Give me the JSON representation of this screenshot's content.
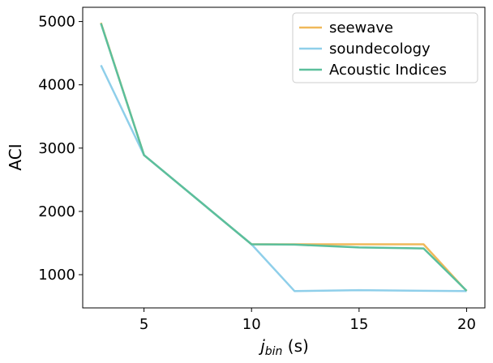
{
  "chart_data": {
    "type": "line",
    "xlabel_main": "j",
    "xlabel_sub": "bin",
    "xlabel_unit": " (s)",
    "ylabel": "ACI",
    "xlim": [
      2.15,
      20.85
    ],
    "ylim": [
      475,
      5225
    ],
    "xticks": [
      5,
      10,
      15,
      20
    ],
    "yticks": [
      1000,
      2000,
      3000,
      4000,
      5000
    ],
    "grid": false,
    "legend_position": "top-right",
    "series": [
      {
        "name": "seewave",
        "color": "#f0b95a",
        "x": [
          3,
          5,
          10,
          12,
          15,
          18,
          20
        ],
        "y": [
          4980,
          2890,
          1480,
          1480,
          1480,
          1480,
          740
        ]
      },
      {
        "name": "soundecology",
        "color": "#8fcfea",
        "x": [
          3,
          5,
          10,
          12,
          15,
          18,
          20
        ],
        "y": [
          4310,
          2890,
          1480,
          740,
          755,
          745,
          740
        ]
      },
      {
        "name": "Acoustic Indices",
        "color": "#5bbf9c",
        "x": [
          3,
          5,
          10,
          12,
          15,
          18,
          20
        ],
        "y": [
          4970,
          2890,
          1480,
          1475,
          1430,
          1415,
          745
        ]
      }
    ]
  }
}
